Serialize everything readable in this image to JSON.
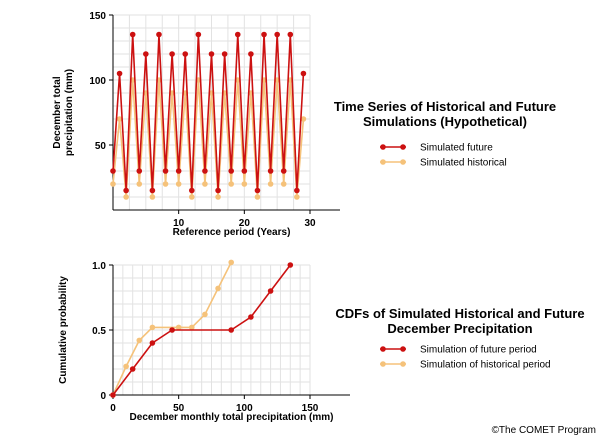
{
  "chart_data": [
    {
      "type": "line",
      "title_lines": [
        "Time Series of Historical and Future",
        "Simulations (Hypothetical)"
      ],
      "xlabel": "Reference period (Years)",
      "ylabel_lines": [
        "December total",
        "precipitation (mm)"
      ],
      "xlim": [
        0,
        30
      ],
      "ylim": [
        0,
        150
      ],
      "xticks": [
        10,
        20,
        30
      ],
      "yticks": [
        50,
        100,
        150
      ],
      "grid": true,
      "legend_position": "right",
      "series": [
        {
          "name": "Simulated future",
          "color": "#cc1111",
          "x": [
            0,
            1,
            2,
            3,
            4,
            5,
            6,
            7,
            8,
            9,
            10,
            11,
            12,
            13,
            14,
            15,
            16,
            17,
            18,
            19,
            20,
            21,
            22,
            23,
            24,
            25,
            26,
            27,
            28,
            29
          ],
          "y": [
            30,
            105,
            15,
            135,
            30,
            120,
            15,
            135,
            30,
            120,
            30,
            120,
            15,
            135,
            30,
            120,
            15,
            120,
            30,
            135,
            30,
            120,
            15,
            135,
            30,
            135,
            30,
            135,
            15,
            105
          ]
        },
        {
          "name": "Simulated historical",
          "color": "#f5c27a",
          "x": [
            0,
            1,
            2,
            3,
            4,
            5,
            6,
            7,
            8,
            9,
            10,
            11,
            12,
            13,
            14,
            15,
            16,
            17,
            18,
            19,
            20,
            21,
            22,
            23,
            24,
            25,
            26,
            27,
            28,
            29
          ],
          "y": [
            20,
            70,
            10,
            100,
            20,
            90,
            10,
            100,
            20,
            90,
            20,
            90,
            10,
            100,
            20,
            90,
            10,
            90,
            20,
            100,
            20,
            90,
            10,
            100,
            20,
            100,
            20,
            100,
            10,
            70
          ]
        }
      ]
    },
    {
      "type": "line",
      "title_lines": [
        "CDFs of Simulated Historical and Future",
        "December Precipitation"
      ],
      "xlabel": "December monthly total precipitation (mm)",
      "ylabel_lines": [
        "Cumulative probability"
      ],
      "xlim": [
        0,
        150
      ],
      "ylim": [
        0,
        1
      ],
      "xticks": [
        0,
        50,
        100,
        150
      ],
      "yticks": [
        0,
        0.5,
        1.0
      ],
      "ytick_labels": [
        "0",
        "0.5",
        "1.0"
      ],
      "grid": true,
      "legend_position": "right",
      "series": [
        {
          "name": "Simulation of future period",
          "color": "#cc1111",
          "x": [
            0,
            15,
            30,
            45,
            90,
            105,
            120,
            135
          ],
          "y": [
            0,
            0.2,
            0.4,
            0.5,
            0.5,
            0.6,
            0.8,
            1.0
          ]
        },
        {
          "name": "Simulation of historical period",
          "color": "#f5c27a",
          "x": [
            0,
            10,
            20,
            30,
            50,
            60,
            70,
            80,
            90
          ],
          "y": [
            0,
            0.22,
            0.42,
            0.52,
            0.52,
            0.52,
            0.62,
            0.82,
            1.02
          ]
        }
      ]
    }
  ],
  "credit": "©The COMET Program"
}
